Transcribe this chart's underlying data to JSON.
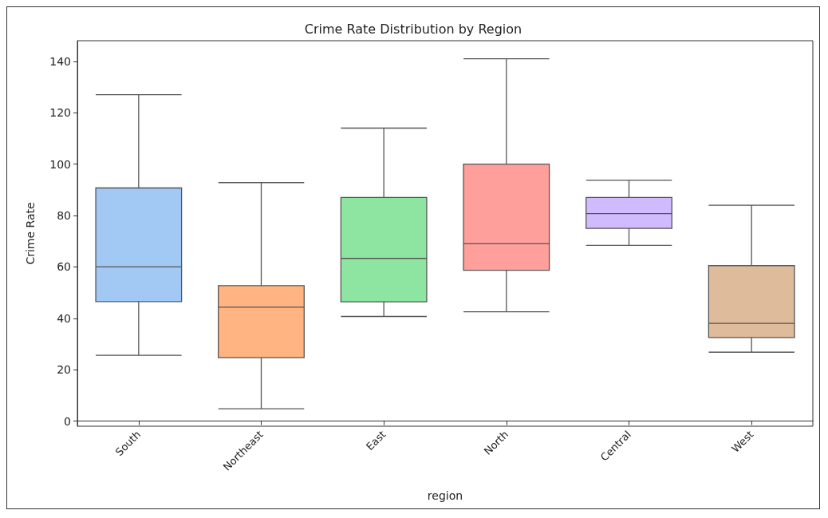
{
  "chart_data": {
    "type": "box",
    "title": "Crime Rate Distribution by Region",
    "xlabel": "region",
    "ylabel": "Crime Rate",
    "categories": [
      "South",
      "Northeast",
      "East",
      "North",
      "Central",
      "West"
    ],
    "colors": [
      "#a1c9f4",
      "#ffb482",
      "#8de5a1",
      "#ff9f9b",
      "#d0bbff",
      "#debb9b"
    ],
    "boxes": [
      {
        "low": 25.6,
        "q1": 46.5,
        "median": 60,
        "q3": 90.7,
        "high": 127
      },
      {
        "low": 4.8,
        "q1": 24.7,
        "median": 44.3,
        "q3": 52.7,
        "high": 92.8
      },
      {
        "low": 40.7,
        "q1": 46.4,
        "median": 63.3,
        "q3": 87,
        "high": 114
      },
      {
        "low": 42.5,
        "q1": 58.7,
        "median": 69,
        "q3": 100,
        "high": 141
      },
      {
        "low": 68.4,
        "q1": 75,
        "median": 80.7,
        "q3": 87,
        "high": 93.7
      },
      {
        "low": 26.8,
        "q1": 32.5,
        "median": 38,
        "q3": 60.5,
        "high": 84
      }
    ],
    "ylim": [
      -2,
      148
    ],
    "yticks": [
      0,
      20,
      40,
      60,
      80,
      100,
      120,
      140
    ]
  }
}
